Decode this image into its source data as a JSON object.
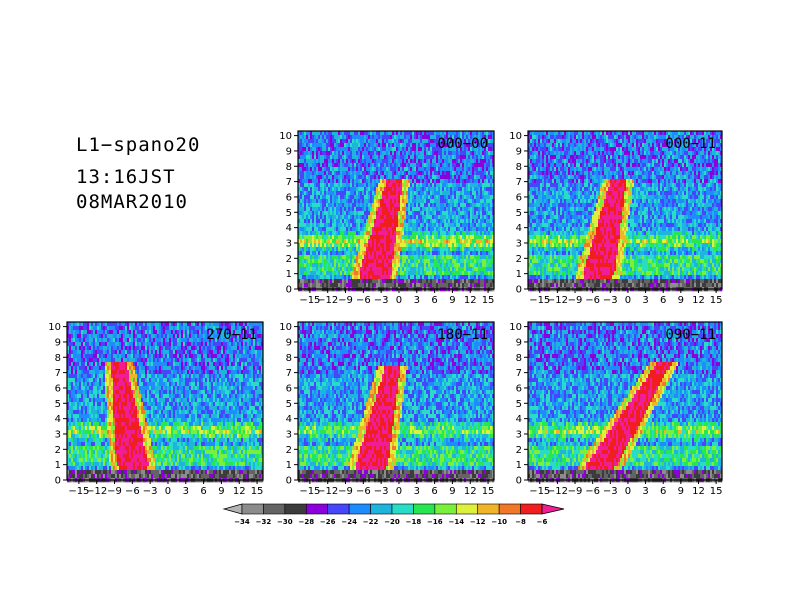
{
  "header": {
    "line1": "L1−spano20",
    "line2": "13:16JST",
    "line3": "08MAR2010"
  },
  "chart_data": {
    "type": "heatmap",
    "x_tick_labels": [
      "−15",
      "−12",
      "−9",
      "−6",
      "−3",
      "0",
      "3",
      "6",
      "9",
      "12",
      "15"
    ],
    "x_ticks": [
      -15,
      -12,
      -9,
      -6,
      -3,
      0,
      3,
      6,
      9,
      12,
      15
    ],
    "xlim": [
      -17,
      16
    ],
    "y_tick_labels": [
      "0",
      "1",
      "2",
      "3",
      "4",
      "5",
      "6",
      "7",
      "8",
      "9",
      "10"
    ],
    "y_ticks": [
      0,
      1,
      2,
      3,
      4,
      5,
      6,
      7,
      8,
      9,
      10
    ],
    "ylim": [
      0,
      10.3
    ],
    "panels": [
      {
        "label": "000−00",
        "core_center_x": -3.5,
        "core_center_y": 2.0,
        "core_tilt": 0.55,
        "core_top_y": 7.3,
        "layer_y": 3.1,
        "layer_strength": 0.9
      },
      {
        "label": "000−11",
        "core_center_x": -4.5,
        "core_center_y": 1.8,
        "core_tilt": 0.55,
        "core_top_y": 7.3,
        "layer_y": 3.1,
        "layer_strength": 0.7
      },
      {
        "label": "270−11",
        "core_center_x": -6.5,
        "core_center_y": 2.5,
        "core_tilt": -0.35,
        "core_top_y": 7.6,
        "layer_y": 3.2,
        "layer_strength": 0.8
      },
      {
        "label": "180−11",
        "core_center_x": -4.0,
        "core_center_y": 2.0,
        "core_tilt": 0.55,
        "core_top_y": 7.4,
        "layer_y": 3.2,
        "layer_strength": 0.7
      },
      {
        "label": "090−11",
        "core_center_x": -2.0,
        "core_center_y": 2.5,
        "core_tilt": 1.6,
        "core_top_y": 7.6,
        "layer_y": 3.2,
        "layer_strength": 0.8
      }
    ],
    "colorbar": {
      "labels": [
        "−34",
        "−32",
        "−30",
        "−28",
        "−26",
        "−24",
        "−22",
        "−20",
        "−18",
        "−16",
        "−14",
        "−12",
        "−10",
        "−8",
        "−6"
      ],
      "levels": [
        -34,
        -32,
        -30,
        -28,
        -26,
        -24,
        -22,
        -20,
        -18,
        -16,
        -14,
        -12,
        -10,
        -8,
        -6
      ],
      "colors": [
        "#b4b4b4",
        "#8c8c8c",
        "#646464",
        "#3c3c3c",
        "#8c00dc",
        "#4646fa",
        "#1e8cff",
        "#1eb4dc",
        "#28dcc8",
        "#28e650",
        "#78f03c",
        "#dcf03c",
        "#f0b428",
        "#f07828",
        "#f01e1e",
        "#f01e96"
      ]
    }
  }
}
